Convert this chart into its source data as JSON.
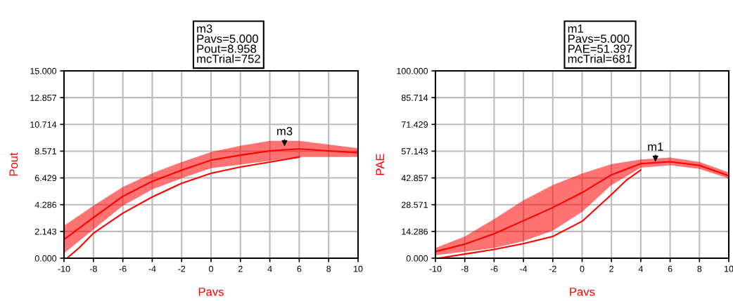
{
  "chart_data": [
    {
      "type": "line",
      "xlabel": "Pavs",
      "ylabel": "Pout",
      "xlim": [
        -10,
        10
      ],
      "xticks": [
        -10,
        -8,
        -6,
        -4,
        -2,
        0,
        2,
        4,
        6,
        8,
        10
      ],
      "ylim": [
        0,
        15
      ],
      "yticks": [
        {
          "value": 0,
          "label": "0.000"
        },
        {
          "value": 2.143,
          "label": "2.143"
        },
        {
          "value": 4.286,
          "label": "4.286"
        },
        {
          "value": 6.429,
          "label": "6.429"
        },
        {
          "value": 8.571,
          "label": "8.571"
        },
        {
          "value": 10.714,
          "label": "10.714"
        },
        {
          "value": 12.857,
          "label": "12.857"
        },
        {
          "value": 15,
          "label": "15.000"
        }
      ],
      "grid": true,
      "series": [
        {
          "color": "#ff0000",
          "x": [
            -10,
            -8,
            -6,
            -4,
            -2,
            0,
            2,
            4,
            6,
            8,
            10
          ],
          "values": [
            1.5,
            3.25,
            4.95,
            6.15,
            7.05,
            7.85,
            8.25,
            8.6,
            8.75,
            8.6,
            8.45
          ],
          "lower": [
            0.4,
            2.3,
            4.2,
            5.5,
            6.4,
            7.2,
            7.5,
            7.8,
            8.1,
            8.1,
            8.1
          ],
          "upper": [
            2.6,
            4.2,
            5.7,
            6.8,
            7.7,
            8.5,
            9.0,
            9.4,
            9.4,
            9.1,
            8.8
          ]
        },
        {
          "color": "#ff0000",
          "x": [
            -9.8,
            -9,
            -8,
            -6,
            -4,
            -2,
            0,
            2,
            4,
            6
          ],
          "values": [
            0.0,
            0.8,
            2.0,
            3.6,
            4.9,
            6.0,
            6.8,
            7.3,
            7.7,
            8.1
          ]
        }
      ],
      "annotations": [
        "m3\nPavs=5.000\nPout=8.958\nmcTrial=752",
        {
          "text": "m3",
          "x": 5,
          "y": 8.958
        }
      ]
    },
    {
      "type": "line",
      "xlabel": "Pavs",
      "ylabel": "PAE",
      "xlim": [
        -10,
        10
      ],
      "xticks": [
        -10,
        -8,
        -6,
        -4,
        -2,
        0,
        2,
        4,
        6,
        8,
        10
      ],
      "ylim": [
        0,
        100
      ],
      "yticks": [
        {
          "value": 0,
          "label": "0.000"
        },
        {
          "value": 14.286,
          "label": "14.286"
        },
        {
          "value": 28.571,
          "label": "28.571"
        },
        {
          "value": 42.857,
          "label": "42.857"
        },
        {
          "value": 57.143,
          "label": "57.143"
        },
        {
          "value": 71.429,
          "label": "71.429"
        },
        {
          "value": 85.714,
          "label": "85.714"
        },
        {
          "value": 100,
          "label": "100.000"
        }
      ],
      "grid": true,
      "series": [
        {
          "color": "#ff0000",
          "x": [
            -10,
            -8,
            -6,
            -4,
            -2,
            0,
            2,
            4,
            6,
            8,
            10
          ],
          "values": [
            3.5,
            7.5,
            13,
            20,
            27,
            35,
            44.5,
            50.5,
            51.5,
            49.5,
            44
          ],
          "lower": [
            1.6,
            3.5,
            5.4,
            9.1,
            14.7,
            24.7,
            39,
            48.3,
            49.6,
            47.7,
            42.5
          ],
          "upper": [
            5.4,
            11.6,
            20.9,
            30.9,
            39,
            45.2,
            50.2,
            52.7,
            53.7,
            51.4,
            45.8
          ]
        },
        {
          "color": "#ff0000",
          "x": [
            -9.8,
            -8,
            -6,
            -4,
            -2,
            0,
            2,
            3,
            4
          ],
          "values": [
            0.0,
            2.2,
            4.7,
            7.8,
            11.6,
            19.7,
            34,
            41.5,
            47.1
          ]
        }
      ],
      "annotations": [
        "m1\nPavs=5.000\nPAE=51.397\nmcTrial=681",
        {
          "text": "m1",
          "x": 5,
          "y": 51.397
        }
      ]
    }
  ]
}
